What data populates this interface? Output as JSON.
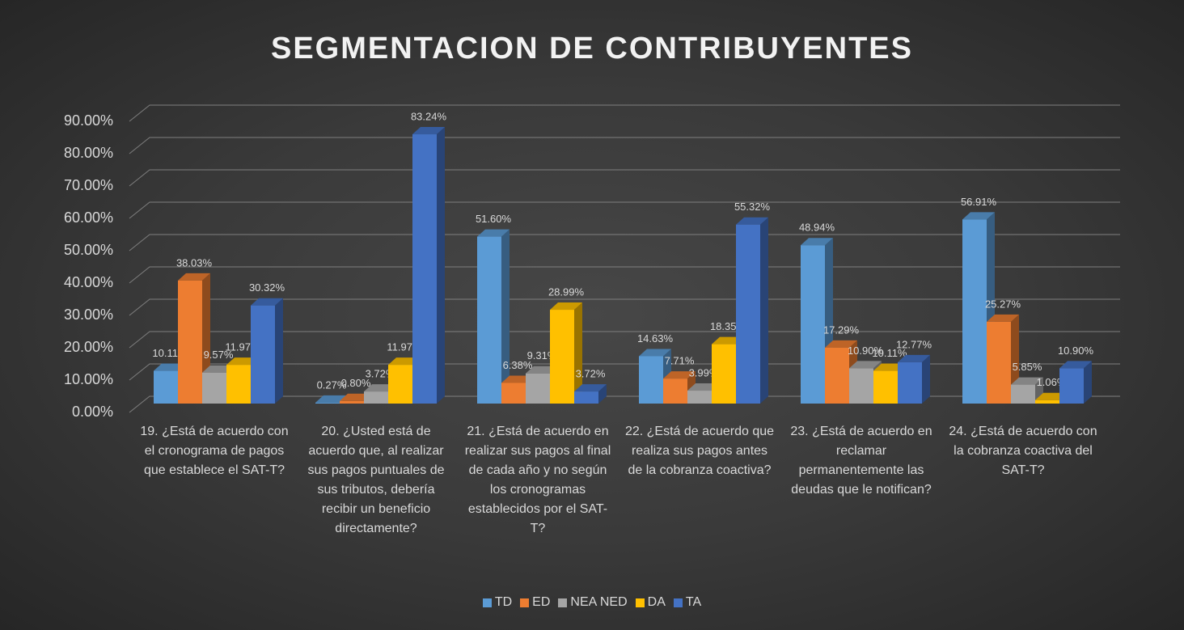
{
  "chart_data": {
    "type": "bar3d",
    "title": "SEGMENTACION DE CONTRIBUYENTES",
    "categories": [
      "19. ¿Está de acuerdo con el cronograma de pagos que establece el SAT-T?",
      "20. ¿Usted está de acuerdo que, al realizar sus pagos puntuales de sus tributos, debería recibir un beneficio directamente?",
      "21. ¿Está de acuerdo en realizar sus pagos al final de cada año y no según los cronogramas establecidos por el SAT-T?",
      "22. ¿Está de acuerdo que realiza sus pagos antes de la cobranza coactiva?",
      "23. ¿Está de acuerdo en reclamar permanentemente las deudas que le notifican?",
      "24. ¿Está de acuerdo con la cobranza coactiva del SAT-T?"
    ],
    "series": [
      {
        "name": "TD",
        "color": "#5b9bd5",
        "values": [
          10.11,
          0.27,
          51.6,
          14.63,
          48.94,
          56.91
        ],
        "value_labels": [
          "10.11%",
          "0.27%",
          "51.60%",
          "14.63%",
          "48.94%",
          "56.91%"
        ]
      },
      {
        "name": "ED",
        "color": "#ed7d31",
        "values": [
          38.03,
          0.8,
          6.38,
          7.71,
          17.29,
          25.27
        ],
        "value_labels": [
          "38.03%",
          "0.80%",
          "6.38%",
          "7.71%",
          "17.29%",
          "25.27%"
        ]
      },
      {
        "name": "NEA NED",
        "color": "#a5a5a5",
        "values": [
          9.57,
          3.72,
          9.31,
          3.99,
          10.9,
          5.85
        ],
        "value_labels": [
          "9.57%",
          "3.72%",
          "9.31%",
          "3.99%",
          "10.90%",
          "5.85%"
        ]
      },
      {
        "name": "DA",
        "color": "#ffc000",
        "values": [
          11.97,
          11.97,
          28.99,
          18.35,
          10.11,
          1.06
        ],
        "value_labels": [
          "11.97%",
          "11.97%",
          "28.99%",
          "18.35%",
          "10.11%",
          "1.06%"
        ]
      },
      {
        "name": "TA",
        "color": "#4472c4",
        "values": [
          30.32,
          83.24,
          3.72,
          55.32,
          12.77,
          10.9
        ],
        "value_labels": [
          "30.32%",
          "83.24%",
          "3.72%",
          "55.32%",
          "12.77%",
          "10.90%"
        ]
      }
    ],
    "ylim": [
      0,
      90
    ],
    "yticks": [
      {
        "value": 0,
        "label": "0.00%"
      },
      {
        "value": 10,
        "label": "10.00%"
      },
      {
        "value": 20,
        "label": "20.00%"
      },
      {
        "value": 30,
        "label": "30.00%"
      },
      {
        "value": 40,
        "label": "40.00%"
      },
      {
        "value": 50,
        "label": "50.00%"
      },
      {
        "value": 60,
        "label": "60.00%"
      },
      {
        "value": 70,
        "label": "70.00%"
      },
      {
        "value": 80,
        "label": "80.00%"
      },
      {
        "value": 90,
        "label": "90.00%"
      }
    ],
    "grid": true,
    "legend": "bottom"
  }
}
